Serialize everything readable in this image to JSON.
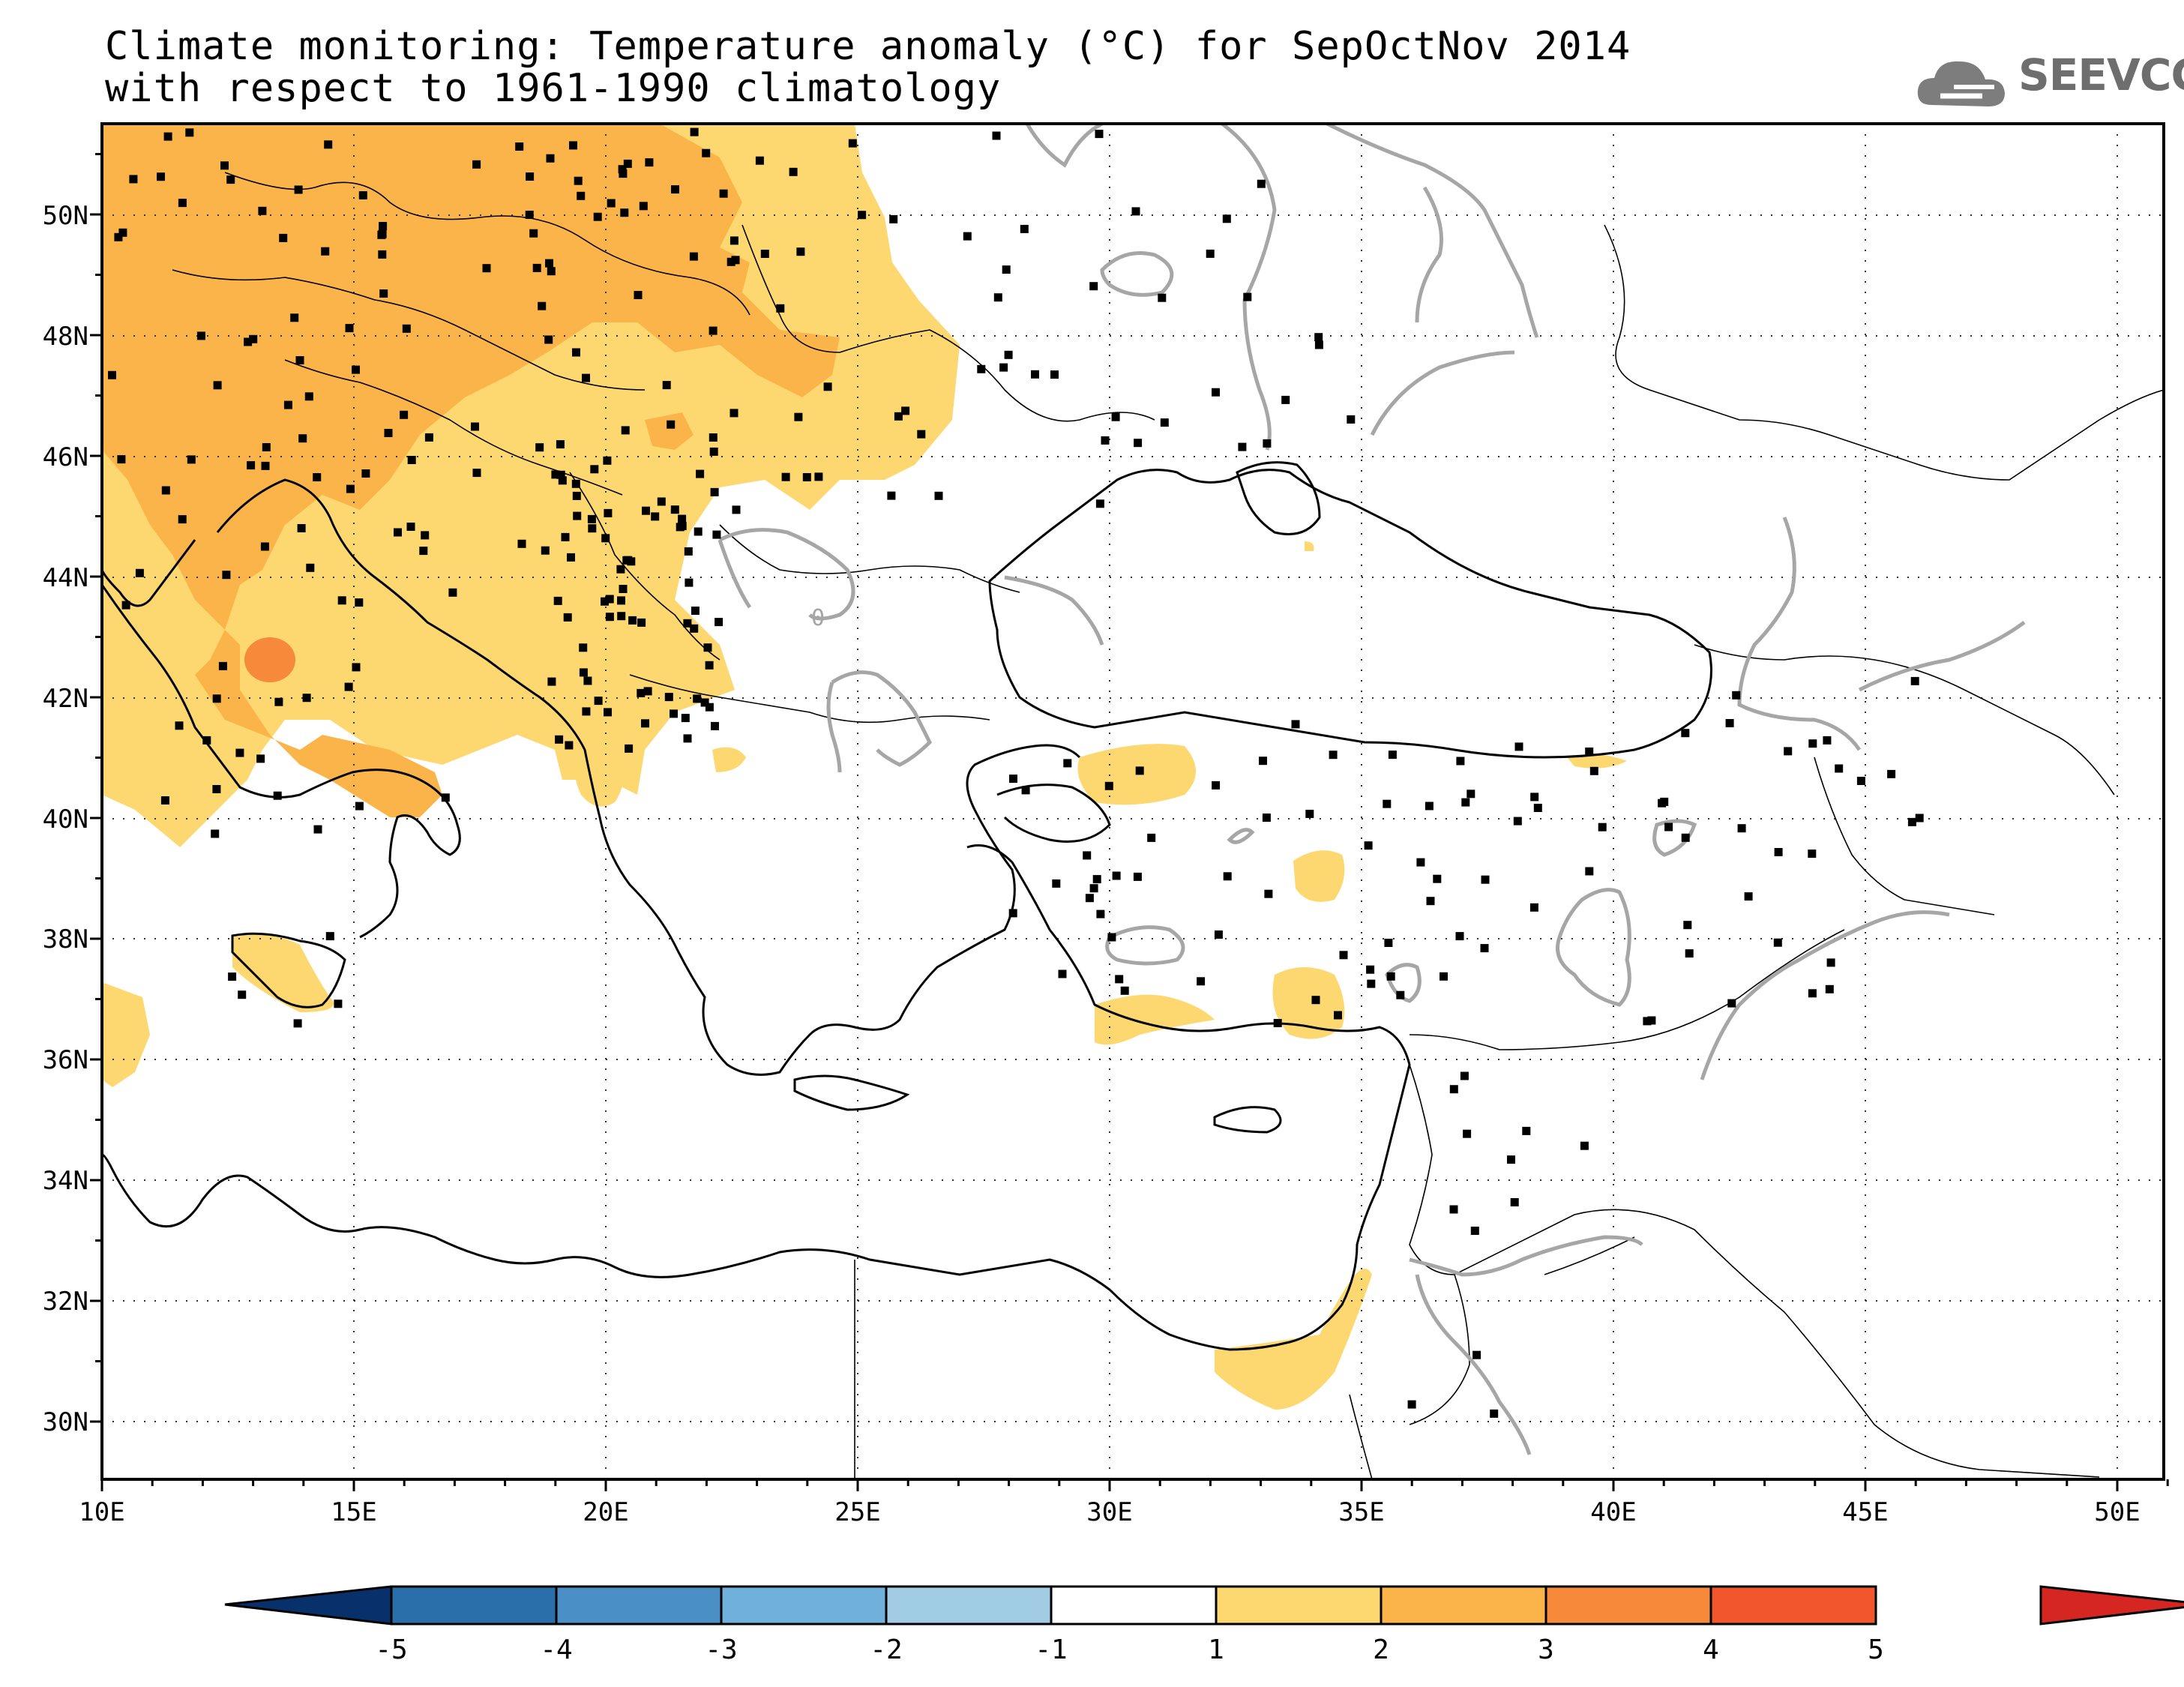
{
  "title": {
    "line1": "Climate monitoring: Temperature anomaly (°C) for SepOctNov 2014",
    "line2": "with respect to 1961-1990 climatology"
  },
  "logo": {
    "text": "SEEVCCC",
    "icon": "cloud-icon"
  },
  "map": {
    "lon_range": [
      10,
      51
    ],
    "lat_range": [
      29,
      51.5
    ],
    "lon_ticks": [
      "10E",
      "15E",
      "20E",
      "25E",
      "30E",
      "35E",
      "40E",
      "45E",
      "50E"
    ],
    "lat_ticks": [
      "30N",
      "32N",
      "34N",
      "36N",
      "38N",
      "40N",
      "42N",
      "44N",
      "46N",
      "48N",
      "50N"
    ],
    "contour_label": "0",
    "grid": "dotted"
  },
  "colorbar": {
    "labels": [
      "-5",
      "-4",
      "-3",
      "-2",
      "-1",
      "1",
      "2",
      "3",
      "4",
      "5"
    ],
    "colors": [
      "#08306b",
      "#2b6faa",
      "#4a90c6",
      "#6fb0dc",
      "#a2cce3",
      "#ffffff",
      "#fdd870",
      "#fbb44a",
      "#f7893a",
      "#f2562d",
      "#d62621"
    ]
  }
}
